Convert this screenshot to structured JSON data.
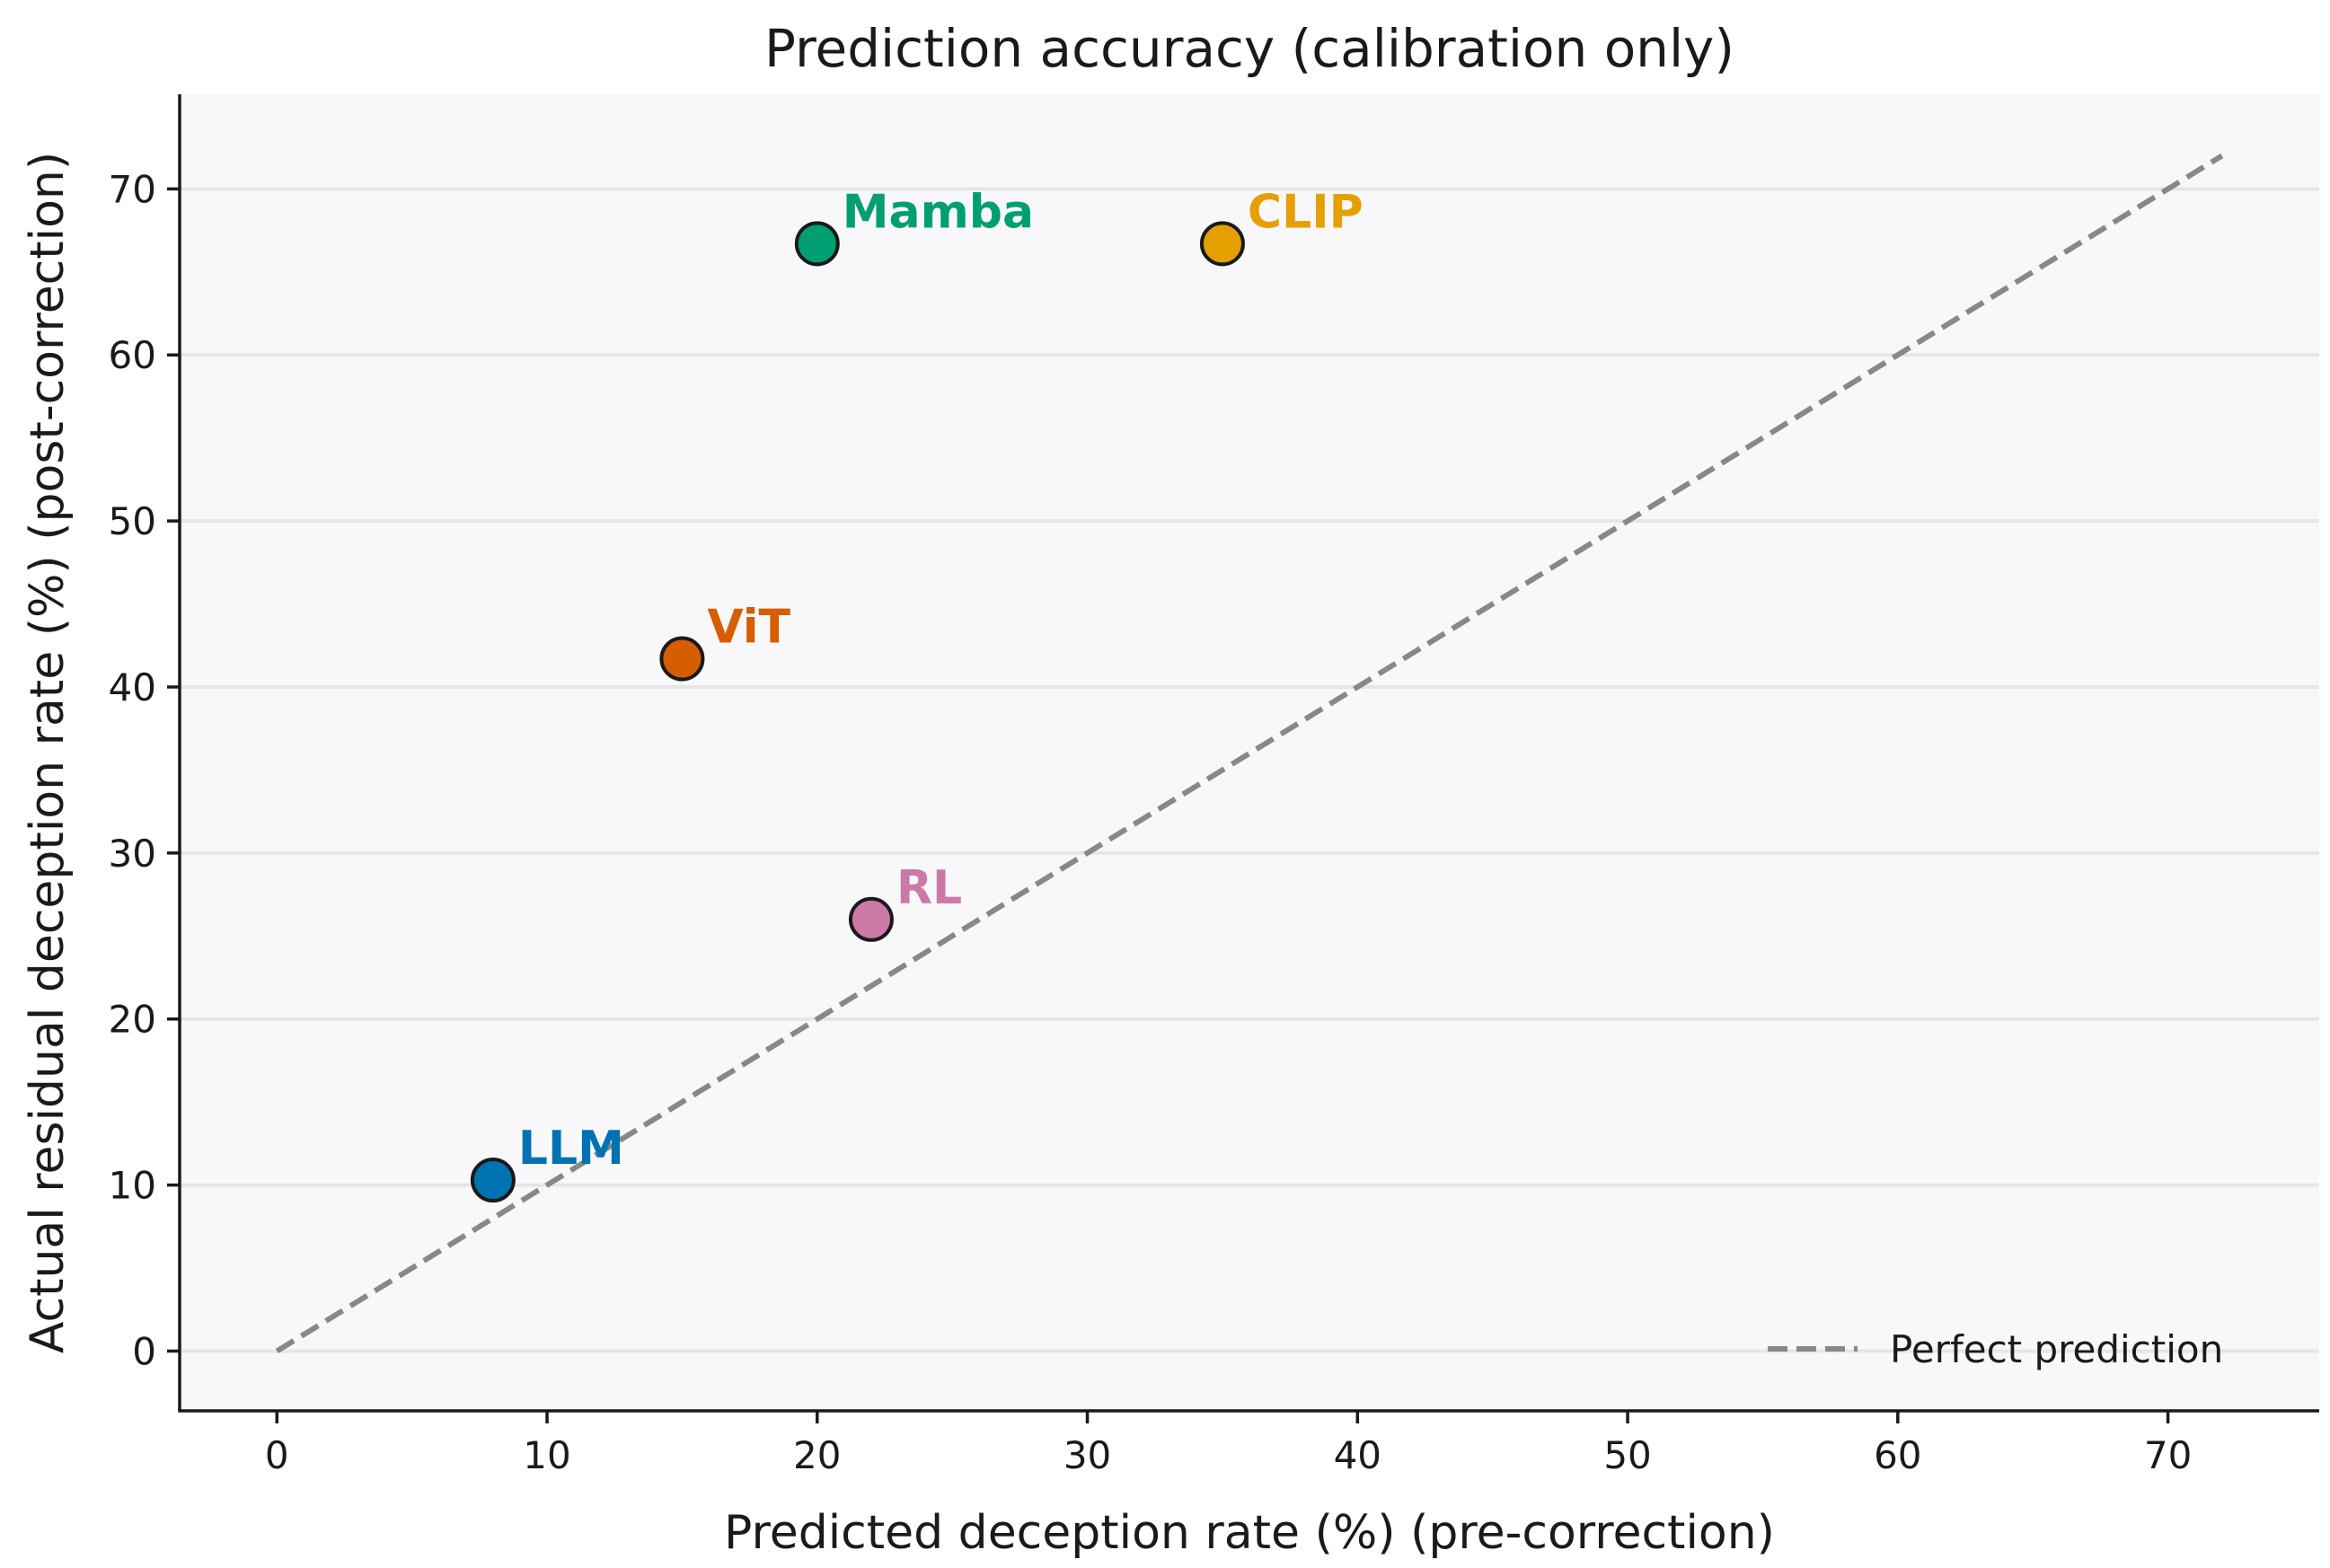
{
  "chart_data": {
    "type": "scatter",
    "title": "Prediction accuracy (calibration only)",
    "xlabel": "Predicted deception rate (%)  (pre-correction)",
    "ylabel": "Actual residual deception rate (%)  (post-correction)",
    "xlim": [
      -3.6,
      75.6
    ],
    "ylim": [
      -3.6,
      75.7
    ],
    "xticks": [
      0,
      10,
      20,
      30,
      40,
      50,
      60,
      70
    ],
    "yticks": [
      0,
      10,
      20,
      30,
      40,
      50,
      60,
      70
    ],
    "grid": "horizontal",
    "points": [
      {
        "name": "LLM",
        "x": 8,
        "y": 10.3,
        "color": "#0072B2"
      },
      {
        "name": "ViT",
        "x": 15,
        "y": 41.7,
        "color": "#D55E00"
      },
      {
        "name": "Mamba",
        "x": 20,
        "y": 66.7,
        "color": "#009E73"
      },
      {
        "name": "RL",
        "x": 22,
        "y": 26.0,
        "color": "#CC79A7"
      },
      {
        "name": "CLIP",
        "x": 35,
        "y": 66.7,
        "color": "#E69F00"
      }
    ],
    "reference_line": {
      "name": "Perfect prediction",
      "x": [
        0,
        72
      ],
      "y": [
        0,
        72
      ],
      "color": "#888888",
      "style": "dashed"
    },
    "legend": {
      "entries": [
        "Perfect prediction"
      ],
      "position": "lower-right"
    }
  }
}
